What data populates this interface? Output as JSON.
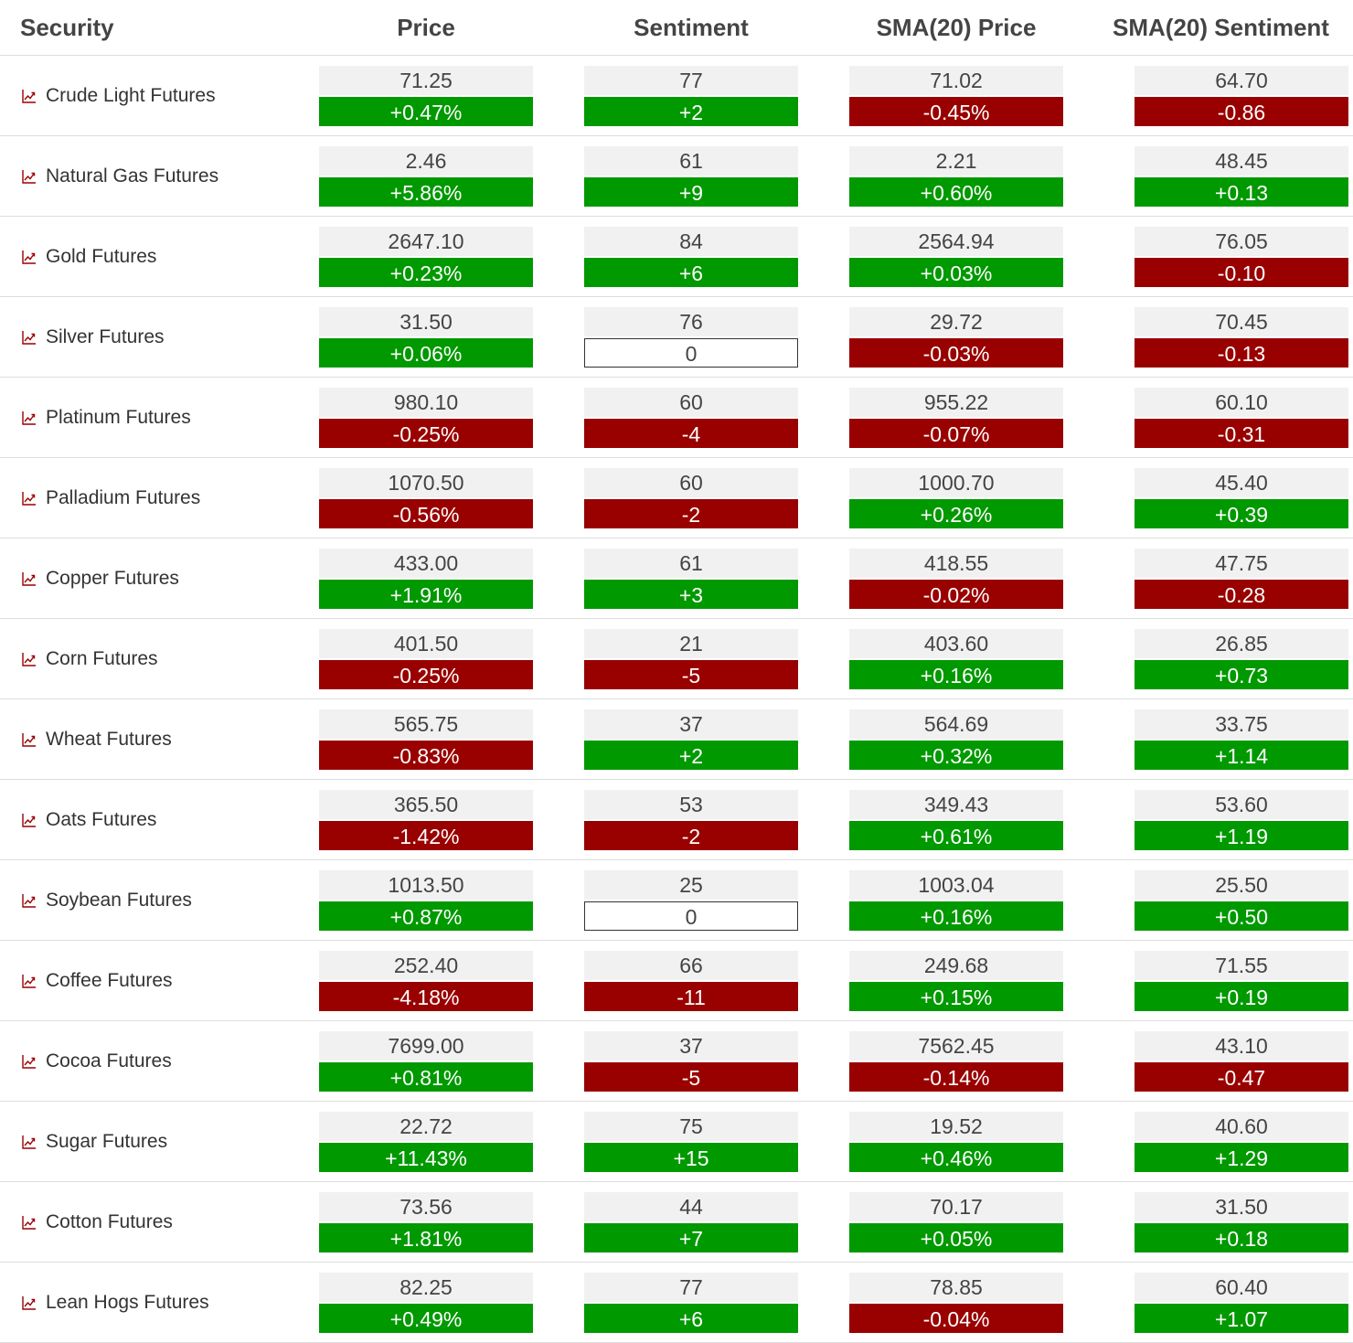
{
  "colors": {
    "up": "#009900",
    "down": "#990000",
    "flat": "#ffffff",
    "value_bg": "#f1f1f1",
    "icon": "#990000"
  },
  "table": {
    "headers": {
      "security": "Security",
      "price": "Price",
      "sentiment": "Sentiment",
      "sma_price": "SMA(20) Price",
      "sma_sentiment": "SMA(20) Sentiment"
    },
    "row_icon": "line-chart-icon",
    "rows": [
      {
        "name": "Crude Light Futures",
        "price": {
          "value": "71.25",
          "change": "+0.47%",
          "dir": "up"
        },
        "sentiment": {
          "value": "77",
          "change": "+2",
          "dir": "up"
        },
        "sma_price": {
          "value": "71.02",
          "change": "-0.45%",
          "dir": "down"
        },
        "sma_sentiment": {
          "value": "64.70",
          "change": "-0.86",
          "dir": "down"
        }
      },
      {
        "name": "Natural Gas Futures",
        "price": {
          "value": "2.46",
          "change": "+5.86%",
          "dir": "up"
        },
        "sentiment": {
          "value": "61",
          "change": "+9",
          "dir": "up"
        },
        "sma_price": {
          "value": "2.21",
          "change": "+0.60%",
          "dir": "up"
        },
        "sma_sentiment": {
          "value": "48.45",
          "change": "+0.13",
          "dir": "up"
        }
      },
      {
        "name": "Gold Futures",
        "price": {
          "value": "2647.10",
          "change": "+0.23%",
          "dir": "up"
        },
        "sentiment": {
          "value": "84",
          "change": "+6",
          "dir": "up"
        },
        "sma_price": {
          "value": "2564.94",
          "change": "+0.03%",
          "dir": "up"
        },
        "sma_sentiment": {
          "value": "76.05",
          "change": "-0.10",
          "dir": "down"
        }
      },
      {
        "name": "Silver Futures",
        "price": {
          "value": "31.50",
          "change": "+0.06%",
          "dir": "up"
        },
        "sentiment": {
          "value": "76",
          "change": "0",
          "dir": "flat"
        },
        "sma_price": {
          "value": "29.72",
          "change": "-0.03%",
          "dir": "down"
        },
        "sma_sentiment": {
          "value": "70.45",
          "change": "-0.13",
          "dir": "down"
        }
      },
      {
        "name": "Platinum Futures",
        "price": {
          "value": "980.10",
          "change": "-0.25%",
          "dir": "down"
        },
        "sentiment": {
          "value": "60",
          "change": "-4",
          "dir": "down"
        },
        "sma_price": {
          "value": "955.22",
          "change": "-0.07%",
          "dir": "down"
        },
        "sma_sentiment": {
          "value": "60.10",
          "change": "-0.31",
          "dir": "down"
        }
      },
      {
        "name": "Palladium Futures",
        "price": {
          "value": "1070.50",
          "change": "-0.56%",
          "dir": "down"
        },
        "sentiment": {
          "value": "60",
          "change": "-2",
          "dir": "down"
        },
        "sma_price": {
          "value": "1000.70",
          "change": "+0.26%",
          "dir": "up"
        },
        "sma_sentiment": {
          "value": "45.40",
          "change": "+0.39",
          "dir": "up"
        }
      },
      {
        "name": "Copper Futures",
        "price": {
          "value": "433.00",
          "change": "+1.91%",
          "dir": "up"
        },
        "sentiment": {
          "value": "61",
          "change": "+3",
          "dir": "up"
        },
        "sma_price": {
          "value": "418.55",
          "change": "-0.02%",
          "dir": "down"
        },
        "sma_sentiment": {
          "value": "47.75",
          "change": "-0.28",
          "dir": "down"
        }
      },
      {
        "name": "Corn Futures",
        "price": {
          "value": "401.50",
          "change": "-0.25%",
          "dir": "down"
        },
        "sentiment": {
          "value": "21",
          "change": "-5",
          "dir": "down"
        },
        "sma_price": {
          "value": "403.60",
          "change": "+0.16%",
          "dir": "up"
        },
        "sma_sentiment": {
          "value": "26.85",
          "change": "+0.73",
          "dir": "up"
        }
      },
      {
        "name": "Wheat Futures",
        "price": {
          "value": "565.75",
          "change": "-0.83%",
          "dir": "down"
        },
        "sentiment": {
          "value": "37",
          "change": "+2",
          "dir": "up"
        },
        "sma_price": {
          "value": "564.69",
          "change": "+0.32%",
          "dir": "up"
        },
        "sma_sentiment": {
          "value": "33.75",
          "change": "+1.14",
          "dir": "up"
        }
      },
      {
        "name": "Oats Futures",
        "price": {
          "value": "365.50",
          "change": "-1.42%",
          "dir": "down"
        },
        "sentiment": {
          "value": "53",
          "change": "-2",
          "dir": "down"
        },
        "sma_price": {
          "value": "349.43",
          "change": "+0.61%",
          "dir": "up"
        },
        "sma_sentiment": {
          "value": "53.60",
          "change": "+1.19",
          "dir": "up"
        }
      },
      {
        "name": "Soybean Futures",
        "price": {
          "value": "1013.50",
          "change": "+0.87%",
          "dir": "up"
        },
        "sentiment": {
          "value": "25",
          "change": "0",
          "dir": "flat"
        },
        "sma_price": {
          "value": "1003.04",
          "change": "+0.16%",
          "dir": "up"
        },
        "sma_sentiment": {
          "value": "25.50",
          "change": "+0.50",
          "dir": "up"
        }
      },
      {
        "name": "Coffee Futures",
        "price": {
          "value": "252.40",
          "change": "-4.18%",
          "dir": "down"
        },
        "sentiment": {
          "value": "66",
          "change": "-11",
          "dir": "down"
        },
        "sma_price": {
          "value": "249.68",
          "change": "+0.15%",
          "dir": "up"
        },
        "sma_sentiment": {
          "value": "71.55",
          "change": "+0.19",
          "dir": "up"
        }
      },
      {
        "name": "Cocoa Futures",
        "price": {
          "value": "7699.00",
          "change": "+0.81%",
          "dir": "up"
        },
        "sentiment": {
          "value": "37",
          "change": "-5",
          "dir": "down"
        },
        "sma_price": {
          "value": "7562.45",
          "change": "-0.14%",
          "dir": "down"
        },
        "sma_sentiment": {
          "value": "43.10",
          "change": "-0.47",
          "dir": "down"
        }
      },
      {
        "name": "Sugar Futures",
        "price": {
          "value": "22.72",
          "change": "+11.43%",
          "dir": "up"
        },
        "sentiment": {
          "value": "75",
          "change": "+15",
          "dir": "up"
        },
        "sma_price": {
          "value": "19.52",
          "change": "+0.46%",
          "dir": "up"
        },
        "sma_sentiment": {
          "value": "40.60",
          "change": "+1.29",
          "dir": "up"
        }
      },
      {
        "name": "Cotton Futures",
        "price": {
          "value": "73.56",
          "change": "+1.81%",
          "dir": "up"
        },
        "sentiment": {
          "value": "44",
          "change": "+7",
          "dir": "up"
        },
        "sma_price": {
          "value": "70.17",
          "change": "+0.05%",
          "dir": "up"
        },
        "sma_sentiment": {
          "value": "31.50",
          "change": "+0.18",
          "dir": "up"
        }
      },
      {
        "name": "Lean Hogs Futures",
        "price": {
          "value": "82.25",
          "change": "+0.49%",
          "dir": "up"
        },
        "sentiment": {
          "value": "77",
          "change": "+6",
          "dir": "up"
        },
        "sma_price": {
          "value": "78.85",
          "change": "-0.04%",
          "dir": "down"
        },
        "sma_sentiment": {
          "value": "60.40",
          "change": "+1.07",
          "dir": "up"
        }
      }
    ]
  }
}
